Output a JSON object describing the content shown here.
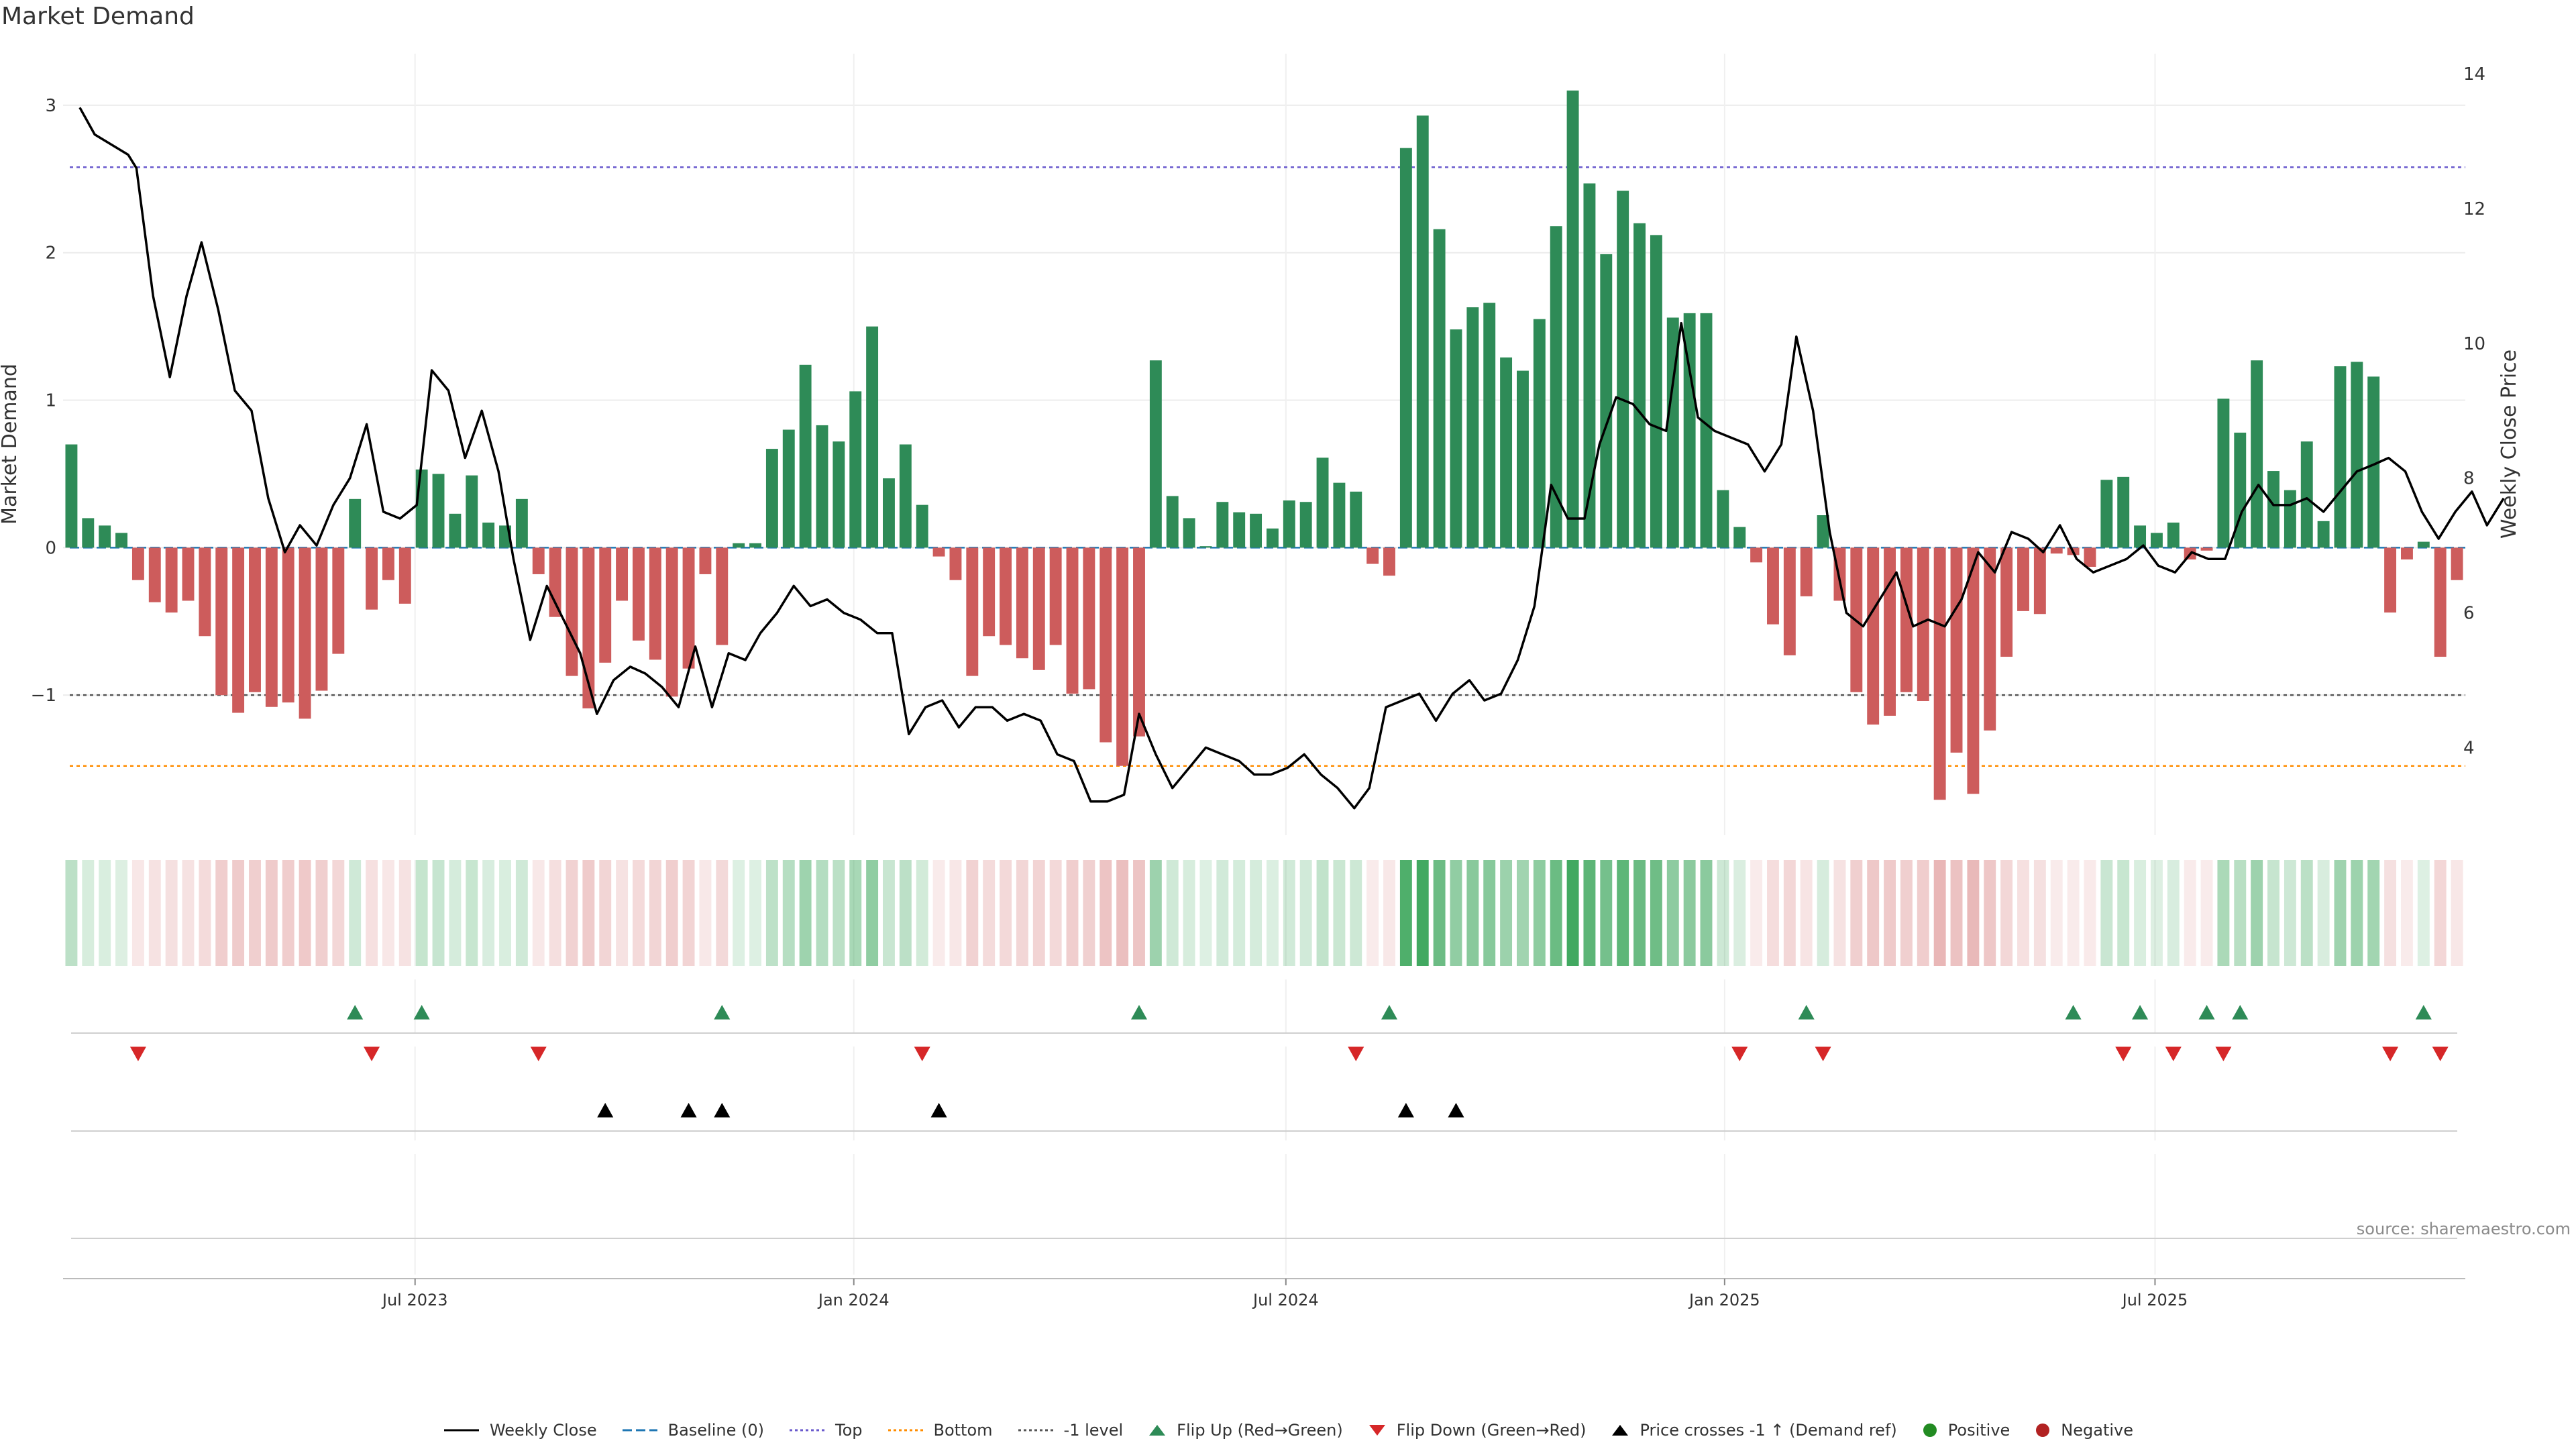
{
  "chart_data": {
    "type": "bar",
    "title": "Market Demand",
    "ylabel": "Market Demand",
    "y2label": "Weekly Close Price",
    "ylim": [
      -1.95,
      3.35
    ],
    "y2lim": [
      2.7,
      14.3
    ],
    "yticks": [
      {
        "v": -1,
        "label": "−1"
      },
      {
        "v": 0,
        "label": "0"
      },
      {
        "v": 1,
        "label": "1"
      },
      {
        "v": 2,
        "label": "2"
      },
      {
        "v": 3,
        "label": "3"
      }
    ],
    "y2ticks": [
      {
        "v": 4,
        "label": "4"
      },
      {
        "v": 6,
        "label": "6"
      },
      {
        "v": 8,
        "label": "8"
      },
      {
        "v": 10,
        "label": "10"
      },
      {
        "v": 12,
        "label": "12"
      },
      {
        "v": 14,
        "label": "14"
      }
    ],
    "xtick_labels": [
      {
        "w": 20.6,
        "label": "Jul 2023"
      },
      {
        "w": 46.9,
        "label": "Jan 2024"
      },
      {
        "w": 72.8,
        "label": "Jul 2024"
      },
      {
        "w": 99.1,
        "label": "Jan 2025"
      },
      {
        "w": 124.9,
        "label": "Jul 2025"
      }
    ],
    "levels": {
      "top": 2.58,
      "bottom": -1.48,
      "minus_one": -1,
      "baseline": 0
    },
    "demand": [
      0.7,
      0.2,
      0.15,
      0.1,
      -0.22,
      -0.37,
      -0.44,
      -0.36,
      -0.6,
      -1.0,
      -1.12,
      -0.98,
      -1.08,
      -1.05,
      -1.16,
      -0.97,
      -0.72,
      0.33,
      -0.42,
      -0.22,
      -0.38,
      0.53,
      0.5,
      0.23,
      0.49,
      0.17,
      0.15,
      0.33,
      -0.18,
      -0.47,
      -0.87,
      -1.09,
      -0.78,
      -0.36,
      -0.63,
      -0.76,
      -1.01,
      -0.82,
      -0.18,
      -0.66,
      0.03,
      0.03,
      0.67,
      0.8,
      1.24,
      0.83,
      0.72,
      1.06,
      1.5,
      0.47,
      0.7,
      0.29,
      -0.06,
      -0.22,
      -0.87,
      -0.6,
      -0.66,
      -0.75,
      -0.83,
      -0.66,
      -0.99,
      -0.96,
      -1.32,
      -1.48,
      -1.28,
      1.27,
      0.35,
      0.2,
      0.01,
      0.31,
      0.24,
      0.23,
      0.13,
      0.32,
      0.31,
      0.61,
      0.44,
      0.38,
      -0.11,
      -0.19,
      2.71,
      2.93,
      2.16,
      1.48,
      1.63,
      1.66,
      1.29,
      1.2,
      1.55,
      2.18,
      3.1,
      2.47,
      1.99,
      2.42,
      2.2,
      2.12,
      1.56,
      1.59,
      1.59,
      0.39,
      0.14,
      -0.1,
      -0.52,
      -0.73,
      -0.33,
      0.22,
      -0.36,
      -0.98,
      -1.2,
      -1.14,
      -0.98,
      -1.04,
      -1.71,
      -1.39,
      -1.67,
      -1.24,
      -0.74,
      -0.43,
      -0.45,
      -0.04,
      -0.05,
      -0.13,
      0.46,
      0.48,
      0.15,
      0.1,
      0.17,
      -0.08,
      -0.02,
      1.01,
      0.78,
      1.27,
      0.52,
      0.39,
      0.72,
      0.18,
      1.23,
      1.26,
      1.16,
      -0.44,
      -0.08,
      0.04,
      -0.74,
      -0.22
    ],
    "prices": [
      [
        0.5,
        13.5
      ],
      [
        1.4,
        13.1
      ],
      [
        3.4,
        12.8
      ],
      [
        3.9,
        12.6
      ],
      [
        4.9,
        10.7
      ],
      [
        5.9,
        9.5
      ],
      [
        6.9,
        10.7
      ],
      [
        7.8,
        11.5
      ],
      [
        8.8,
        10.5
      ],
      [
        9.8,
        9.3
      ],
      [
        10.8,
        9.0
      ],
      [
        11.8,
        7.7
      ],
      [
        12.8,
        6.9
      ],
      [
        13.7,
        7.3
      ],
      [
        14.7,
        7.0
      ],
      [
        15.7,
        7.6
      ],
      [
        16.7,
        8.0
      ],
      [
        17.7,
        8.8
      ],
      [
        18.7,
        7.5
      ],
      [
        19.7,
        7.4
      ],
      [
        20.7,
        7.6
      ],
      [
        21.6,
        9.6
      ],
      [
        22.6,
        9.3
      ],
      [
        23.6,
        8.3
      ],
      [
        24.6,
        9.0
      ],
      [
        25.6,
        8.1
      ],
      [
        26.5,
        6.8
      ],
      [
        27.5,
        5.6
      ],
      [
        28.5,
        6.4
      ],
      [
        29.5,
        5.9
      ],
      [
        30.5,
        5.4
      ],
      [
        31.5,
        4.5
      ],
      [
        32.5,
        5.0
      ],
      [
        33.5,
        5.2
      ],
      [
        34.4,
        5.1
      ],
      [
        35.4,
        4.9
      ],
      [
        36.4,
        4.6
      ],
      [
        37.4,
        5.5
      ],
      [
        38.4,
        4.6
      ],
      [
        39.4,
        5.4
      ],
      [
        40.4,
        5.3
      ],
      [
        41.3,
        5.7
      ],
      [
        42.3,
        6.0
      ],
      [
        43.3,
        6.4
      ],
      [
        44.3,
        6.1
      ],
      [
        45.3,
        6.2
      ],
      [
        46.3,
        6.0
      ],
      [
        47.3,
        5.9
      ],
      [
        48.3,
        5.7
      ],
      [
        49.2,
        5.7
      ],
      [
        50.2,
        4.2
      ],
      [
        51.2,
        4.6
      ],
      [
        52.2,
        4.7
      ],
      [
        53.2,
        4.3
      ],
      [
        54.2,
        4.6
      ],
      [
        55.2,
        4.6
      ],
      [
        56.1,
        4.4
      ],
      [
        57.1,
        4.5
      ],
      [
        58.1,
        4.4
      ],
      [
        59.1,
        3.9
      ],
      [
        60.1,
        3.8
      ],
      [
        61.1,
        3.2
      ],
      [
        62.1,
        3.2
      ],
      [
        63.1,
        3.3
      ],
      [
        64.0,
        4.5
      ],
      [
        65.0,
        3.9
      ],
      [
        66.0,
        3.4
      ],
      [
        67.0,
        3.7
      ],
      [
        68.0,
        4.0
      ],
      [
        69.0,
        3.9
      ],
      [
        70.0,
        3.8
      ],
      [
        70.9,
        3.6
      ],
      [
        71.9,
        3.6
      ],
      [
        72.9,
        3.7
      ],
      [
        73.9,
        3.9
      ],
      [
        74.9,
        3.6
      ],
      [
        75.9,
        3.4
      ],
      [
        76.9,
        3.1
      ],
      [
        77.8,
        3.4
      ],
      [
        78.8,
        4.6
      ],
      [
        79.8,
        4.7
      ],
      [
        80.8,
        4.8
      ],
      [
        81.8,
        4.4
      ],
      [
        82.8,
        4.8
      ],
      [
        83.8,
        5.0
      ],
      [
        84.7,
        4.7
      ],
      [
        85.7,
        4.8
      ],
      [
        86.7,
        5.3
      ],
      [
        87.7,
        6.1
      ],
      [
        88.7,
        7.9
      ],
      [
        89.7,
        7.4
      ],
      [
        90.7,
        7.4
      ],
      [
        91.6,
        8.5
      ],
      [
        92.6,
        9.2
      ],
      [
        93.6,
        9.1
      ],
      [
        94.6,
        8.8
      ],
      [
        95.6,
        8.7
      ],
      [
        96.5,
        10.3
      ],
      [
        97.5,
        8.9
      ],
      [
        98.5,
        8.7
      ],
      [
        99.5,
        8.6
      ],
      [
        100.5,
        8.5
      ],
      [
        101.5,
        8.1
      ],
      [
        102.5,
        8.5
      ],
      [
        103.4,
        10.1
      ],
      [
        104.4,
        9.0
      ],
      [
        105.4,
        7.2
      ],
      [
        106.4,
        6.0
      ],
      [
        107.4,
        5.8
      ],
      [
        108.4,
        6.2
      ],
      [
        109.4,
        6.6
      ],
      [
        110.4,
        5.8
      ],
      [
        111.3,
        5.9
      ],
      [
        112.3,
        5.8
      ],
      [
        113.3,
        6.2
      ],
      [
        114.3,
        6.9
      ],
      [
        115.3,
        6.6
      ],
      [
        116.3,
        7.2
      ],
      [
        117.3,
        7.1
      ],
      [
        118.2,
        6.9
      ],
      [
        119.2,
        7.3
      ],
      [
        120.2,
        6.8
      ],
      [
        121.2,
        6.6
      ],
      [
        122.2,
        6.7
      ],
      [
        123.2,
        6.8
      ],
      [
        124.2,
        7.0
      ],
      [
        125.1,
        6.7
      ],
      [
        126.1,
        6.6
      ],
      [
        127.1,
        6.9
      ],
      [
        128.1,
        6.8
      ],
      [
        129.1,
        6.8
      ],
      [
        130.1,
        7.5
      ],
      [
        131.1,
        7.9
      ],
      [
        132.0,
        7.6
      ],
      [
        133.0,
        7.6
      ],
      [
        134.0,
        7.7
      ],
      [
        135.0,
        7.5
      ],
      [
        136.0,
        7.8
      ],
      [
        137.0,
        8.1
      ],
      [
        138.0,
        8.2
      ],
      [
        138.9,
        8.3
      ],
      [
        139.9,
        8.1
      ],
      [
        140.9,
        7.5
      ],
      [
        141.9,
        7.1
      ],
      [
        142.9,
        7.5
      ],
      [
        143.9,
        7.8
      ],
      [
        144.8,
        7.3
      ],
      [
        145.8,
        7.7
      ]
    ],
    "flip_up": [
      17,
      21,
      39,
      64,
      79,
      104,
      120,
      124,
      128,
      130,
      141
    ],
    "flip_down": [
      4,
      18,
      28,
      51,
      77,
      100,
      105,
      123,
      126,
      129,
      139,
      142
    ],
    "price_cross": [
      32,
      37,
      39,
      52,
      80,
      83
    ],
    "positive": [],
    "negative": [],
    "source": "source: sharemaestro.com",
    "colors": {
      "positive_bar": "#2e8b57",
      "negative_bar": "#cd5c5c",
      "price_line": "#000000",
      "top_line": "#6a5acd",
      "bottom_line": "#ff8c00",
      "minus_one_line": "#555555",
      "baseline": "#1f77b4",
      "flip_up": "#2e8b57",
      "flip_down": "#d62728",
      "cross": "#000000",
      "pos_dot": "#228b22",
      "neg_dot": "#b22222"
    }
  },
  "legend": [
    {
      "id": "weekly-close",
      "label": "Weekly Close"
    },
    {
      "id": "baseline",
      "label": "Baseline (0)"
    },
    {
      "id": "top",
      "label": "Top"
    },
    {
      "id": "bottom",
      "label": "Bottom"
    },
    {
      "id": "minus-one",
      "label": "-1 level"
    },
    {
      "id": "flip-up",
      "label": "Flip Up (Red→Green)"
    },
    {
      "id": "flip-down",
      "label": "Flip Down (Green→Red)"
    },
    {
      "id": "price-cross",
      "label": "Price crosses -1 ↑ (Demand ref)"
    },
    {
      "id": "positive",
      "label": "Positive"
    },
    {
      "id": "negative",
      "label": "Negative"
    }
  ]
}
